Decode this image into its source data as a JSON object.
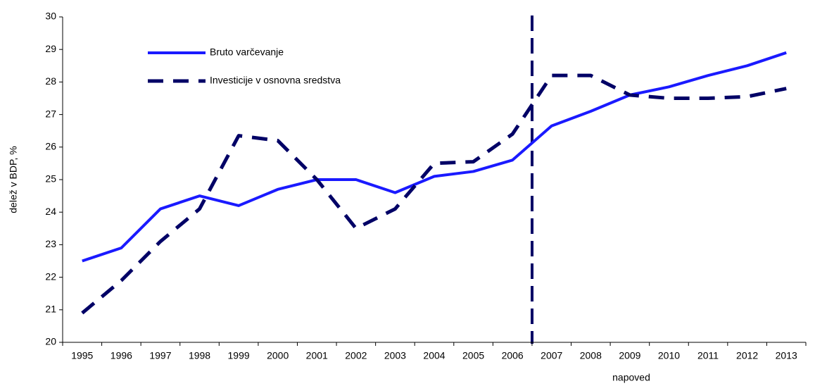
{
  "chart_data": {
    "type": "line",
    "y_label": "delež v BDP, %",
    "annotation": "napoved",
    "categories": [
      "1995",
      "1996",
      "1997",
      "1998",
      "1999",
      "2000",
      "2001",
      "2002",
      "2003",
      "2004",
      "2005",
      "2006",
      "2007",
      "2008",
      "2009",
      "2010",
      "2011",
      "2012",
      "2013"
    ],
    "series": [
      {
        "name": "Bruto varčevanje",
        "color": "#1a1aff",
        "dash": false,
        "values": [
          22.5,
          22.9,
          24.1,
          24.5,
          24.2,
          24.7,
          25.0,
          25.0,
          24.6,
          25.1,
          25.25,
          25.6,
          26.65,
          27.1,
          27.6,
          27.85,
          28.2,
          28.5,
          28.9
        ]
      },
      {
        "name": "Investicije v osnovna sredstva",
        "color": "#000066",
        "dash": true,
        "values": [
          20.9,
          21.9,
          23.1,
          24.1,
          26.35,
          26.2,
          25.0,
          23.5,
          24.1,
          25.5,
          25.55,
          26.4,
          28.2,
          28.2,
          27.6,
          27.5,
          27.5,
          27.55,
          27.8
        ]
      }
    ],
    "ylim": [
      20,
      30
    ],
    "yticks": [
      20,
      21,
      22,
      23,
      24,
      25,
      26,
      27,
      28,
      29,
      30
    ],
    "grid": false
  }
}
